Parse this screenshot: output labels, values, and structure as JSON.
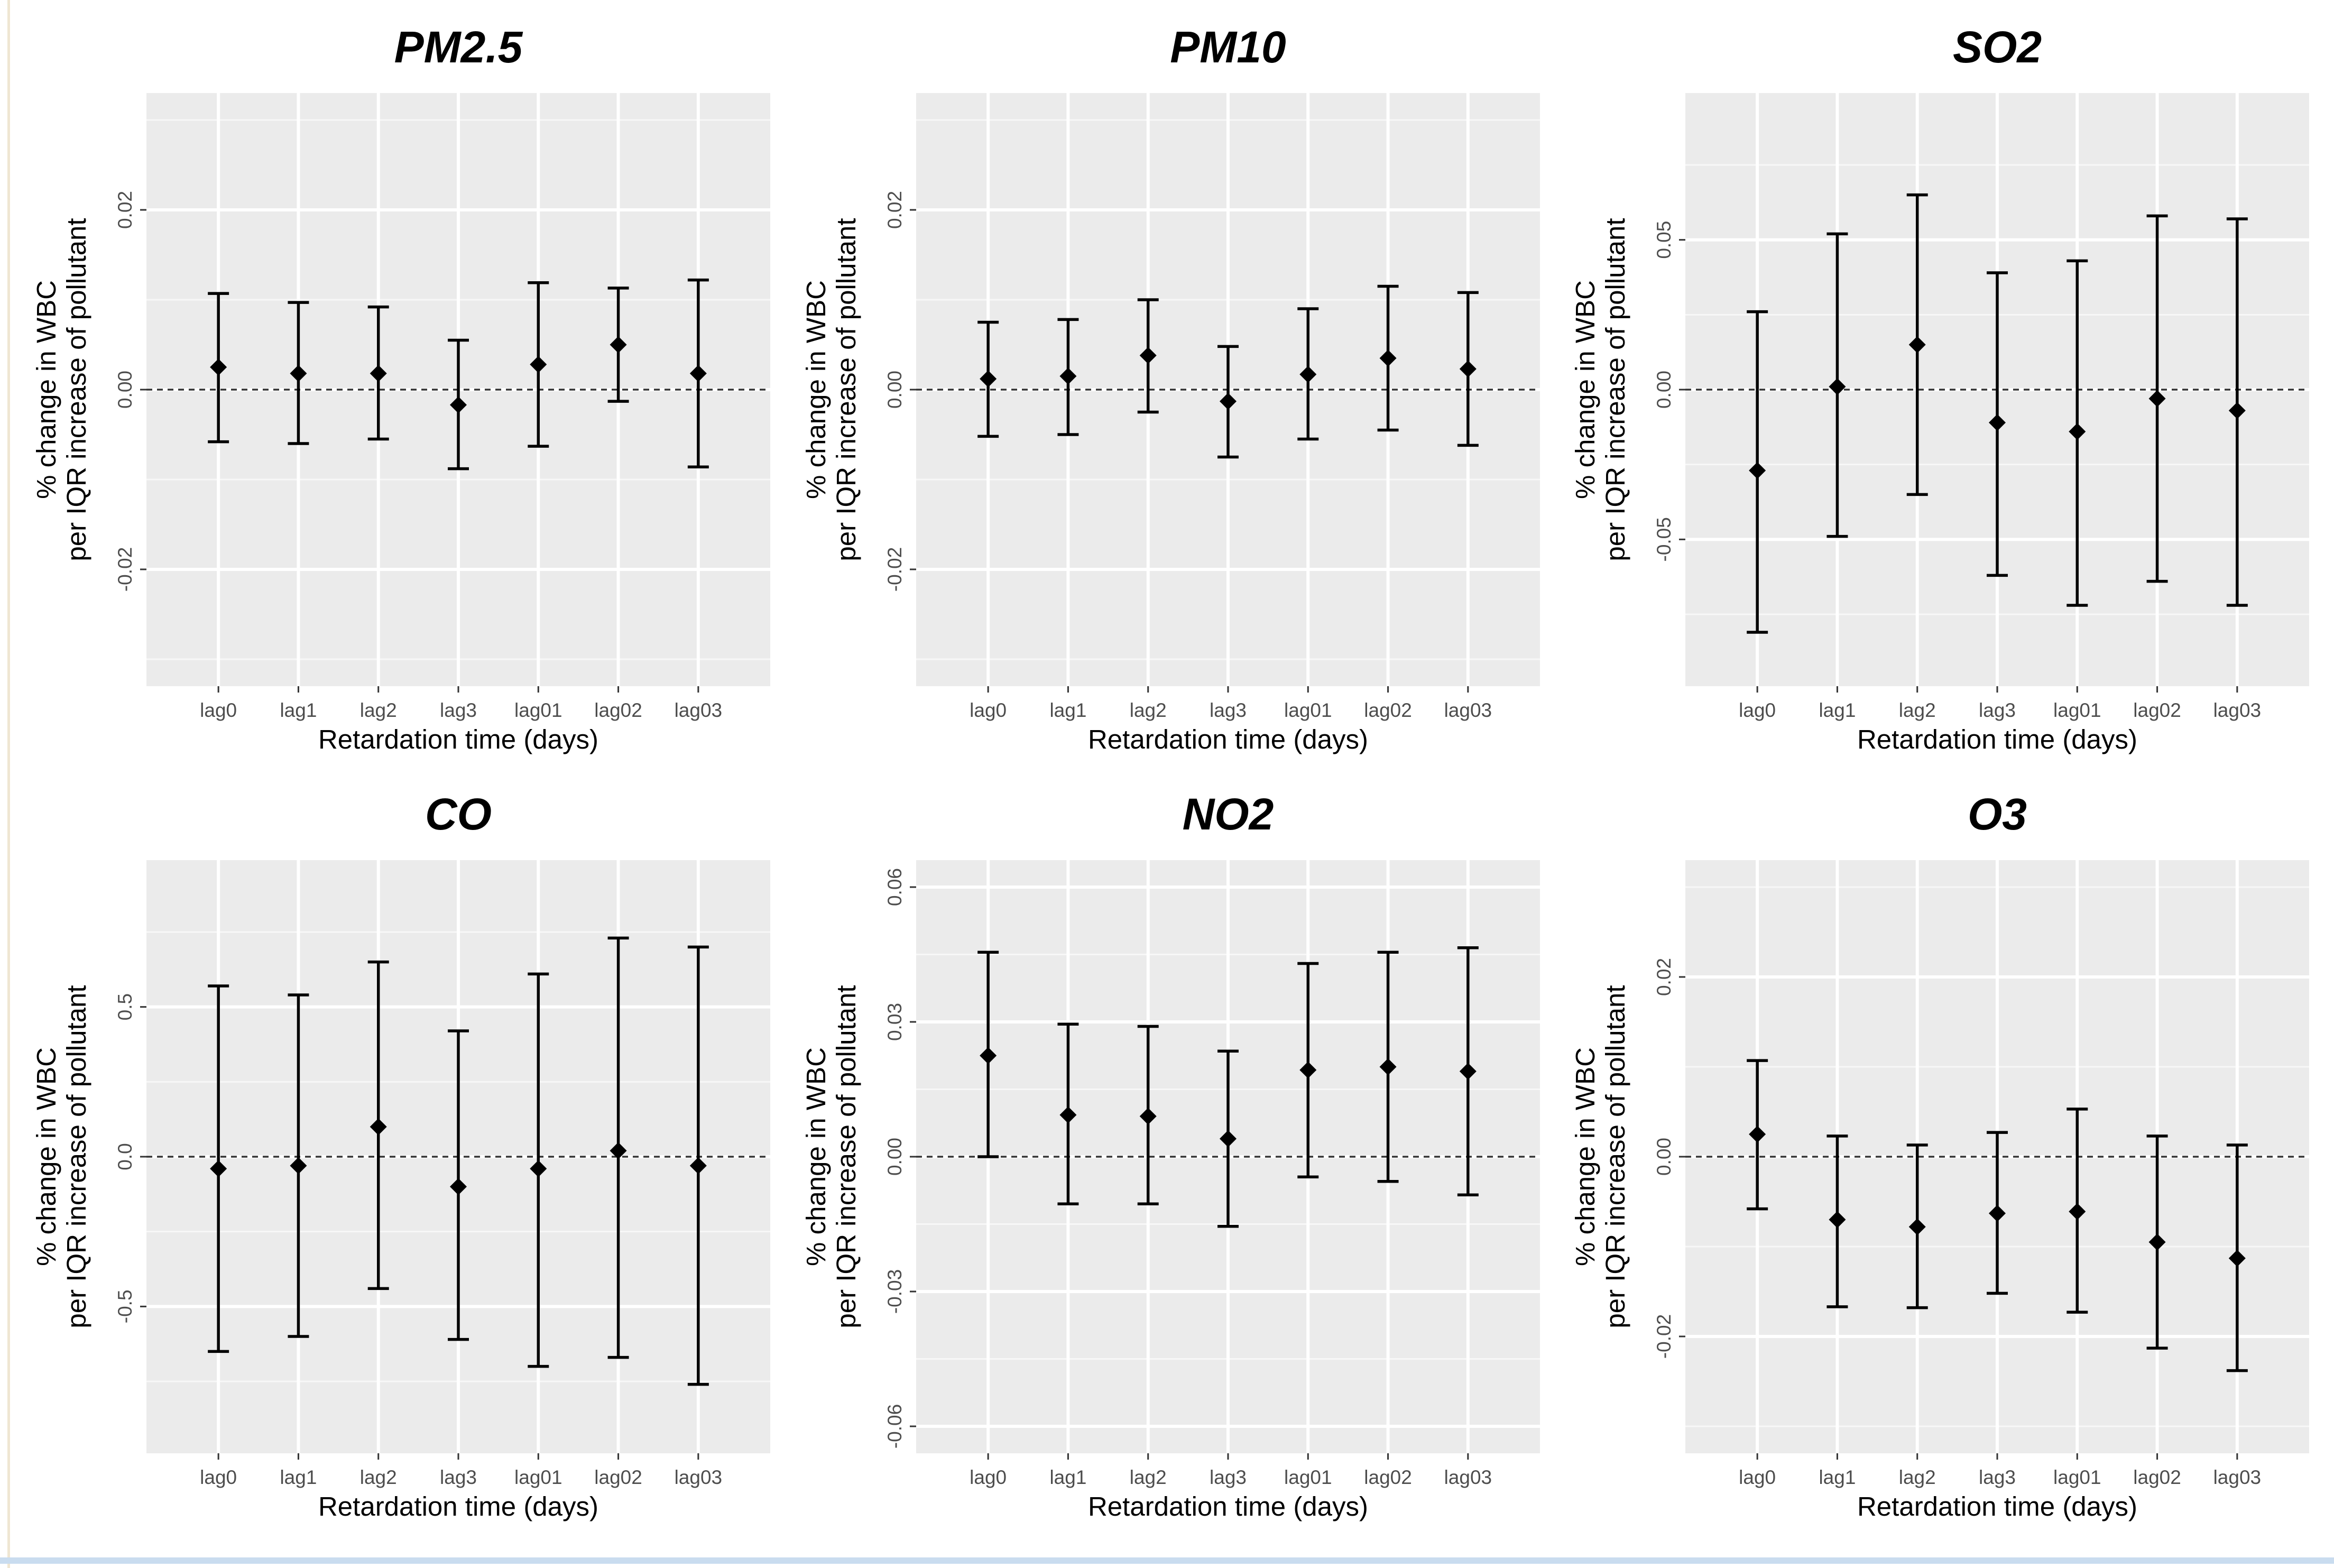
{
  "figure": {
    "x_title": "Retardation time (days)"
  },
  "chart_data": [
    {
      "type": "errorbar",
      "title": "PM2.5",
      "xlabel": "Retardation time (days)",
      "ylabel": [
        "% change in  WBC",
        "per IQR increase of pollutant"
      ],
      "categories": [
        "lag0",
        "lag1",
        "lag2",
        "lag3",
        "lag01",
        "lag02",
        "lag03"
      ],
      "values": [
        0.0025,
        0.0018,
        0.0018,
        -0.0017,
        0.0028,
        0.005,
        0.0018
      ],
      "lower": [
        -0.0058,
        -0.006,
        -0.0055,
        -0.0088,
        -0.0063,
        -0.0013,
        -0.0086
      ],
      "upper": [
        0.0107,
        0.0097,
        0.0092,
        0.0055,
        0.0119,
        0.0113,
        0.0122
      ],
      "ylim": [
        -0.033,
        0.033
      ],
      "yticks": [
        -0.02,
        0.0,
        0.02
      ],
      "ytick_labels": [
        "-0.02",
        "0.00",
        "0.02"
      ],
      "reference_line": 0,
      "grid": true
    },
    {
      "type": "errorbar",
      "title": "PM10",
      "xlabel": "Retardation time (days)",
      "ylabel": [
        "% change in WBC",
        "per IQR increase of pollutant"
      ],
      "categories": [
        "lag0",
        "lag1",
        "lag2",
        "lag3",
        "lag01",
        "lag02",
        "lag03"
      ],
      "values": [
        0.0012,
        0.0015,
        0.0038,
        -0.0013,
        0.0017,
        0.0035,
        0.0023
      ],
      "lower": [
        -0.0052,
        -0.005,
        -0.0025,
        -0.0075,
        -0.0055,
        -0.0045,
        -0.0062
      ],
      "upper": [
        0.0075,
        0.0078,
        0.01,
        0.0048,
        0.009,
        0.0115,
        0.0108
      ],
      "ylim": [
        -0.033,
        0.033
      ],
      "yticks": [
        -0.02,
        0.0,
        0.02
      ],
      "ytick_labels": [
        "-0.02",
        "0.00",
        "0.02"
      ],
      "reference_line": 0,
      "grid": true
    },
    {
      "type": "errorbar",
      "title": "SO2",
      "xlabel": "Retardation time (days)",
      "ylabel": [
        "% change in WBC",
        "per IQR increase of pollutant"
      ],
      "categories": [
        "lag0",
        "lag1",
        "lag2",
        "lag3",
        "lag01",
        "lag02",
        "lag03"
      ],
      "values": [
        -0.027,
        0.001,
        0.015,
        -0.011,
        -0.014,
        -0.003,
        -0.007
      ],
      "lower": [
        -0.081,
        -0.049,
        -0.035,
        -0.062,
        -0.072,
        -0.064,
        -0.072
      ],
      "upper": [
        0.026,
        0.052,
        0.065,
        0.039,
        0.043,
        0.058,
        0.057
      ],
      "ylim": [
        -0.099,
        0.099
      ],
      "yticks": [
        -0.05,
        0.0,
        0.05
      ],
      "ytick_labels": [
        "-0.05",
        "0.00",
        "0.05"
      ],
      "reference_line": 0,
      "grid": true
    },
    {
      "type": "errorbar",
      "title": "CO",
      "xlabel": "Retardation time (days)",
      "ylabel": [
        "% change in WBC",
        "per IQR increase of pollutant"
      ],
      "categories": [
        "lag0",
        "lag1",
        "lag2",
        "lag3",
        "lag01",
        "lag02",
        "lag03"
      ],
      "values": [
        -0.04,
        -0.03,
        0.1,
        -0.1,
        -0.04,
        0.02,
        -0.03
      ],
      "lower": [
        -0.65,
        -0.6,
        -0.44,
        -0.61,
        -0.7,
        -0.67,
        -0.76
      ],
      "upper": [
        0.57,
        0.54,
        0.65,
        0.42,
        0.61,
        0.73,
        0.7
      ],
      "ylim": [
        -0.99,
        0.99
      ],
      "yticks": [
        -0.5,
        0.0,
        0.5
      ],
      "ytick_labels": [
        "-0.5",
        "0.0",
        "0.5"
      ],
      "reference_line": 0,
      "grid": true
    },
    {
      "type": "errorbar",
      "title": "NO2",
      "xlabel": "Retardation time (days)",
      "ylabel": [
        "% change in WBC",
        "per IQR increase of pollutant"
      ],
      "categories": [
        "lag0",
        "lag1",
        "lag2",
        "lag3",
        "lag01",
        "lag02",
        "lag03"
      ],
      "values": [
        0.0225,
        0.0093,
        0.009,
        0.004,
        0.0193,
        0.02,
        0.019
      ],
      "lower": [
        0.0,
        -0.0105,
        -0.0105,
        -0.0155,
        -0.0045,
        -0.0055,
        -0.0085
      ],
      "upper": [
        0.0455,
        0.0295,
        0.029,
        0.0235,
        0.043,
        0.0455,
        0.0465
      ],
      "ylim": [
        -0.066,
        0.066
      ],
      "yticks": [
        -0.06,
        -0.03,
        0.0,
        0.03,
        0.06
      ],
      "ytick_labels": [
        "-0.06",
        "-0.03",
        "0.00",
        "0.03",
        "0.06"
      ],
      "reference_line": 0,
      "grid": true
    },
    {
      "type": "errorbar",
      "title": "O3",
      "xlabel": "Retardation time (days)",
      "ylabel": [
        "% change in WBC",
        "per IQR increase of pollutant"
      ],
      "categories": [
        "lag0",
        "lag1",
        "lag2",
        "lag3",
        "lag01",
        "lag02",
        "lag03"
      ],
      "values": [
        0.0025,
        -0.007,
        -0.0078,
        -0.0063,
        -0.0061,
        -0.0095,
        -0.0113
      ],
      "lower": [
        -0.0058,
        -0.0167,
        -0.0168,
        -0.0152,
        -0.0173,
        -0.0213,
        -0.0238
      ],
      "upper": [
        0.0107,
        0.0023,
        0.0013,
        0.0027,
        0.0053,
        0.0023,
        0.0013
      ],
      "ylim": [
        -0.033,
        0.033
      ],
      "yticks": [
        -0.02,
        0.0,
        0.02
      ],
      "ytick_labels": [
        "-0.02",
        "0.00",
        "0.02"
      ],
      "reference_line": 0,
      "grid": true
    }
  ]
}
